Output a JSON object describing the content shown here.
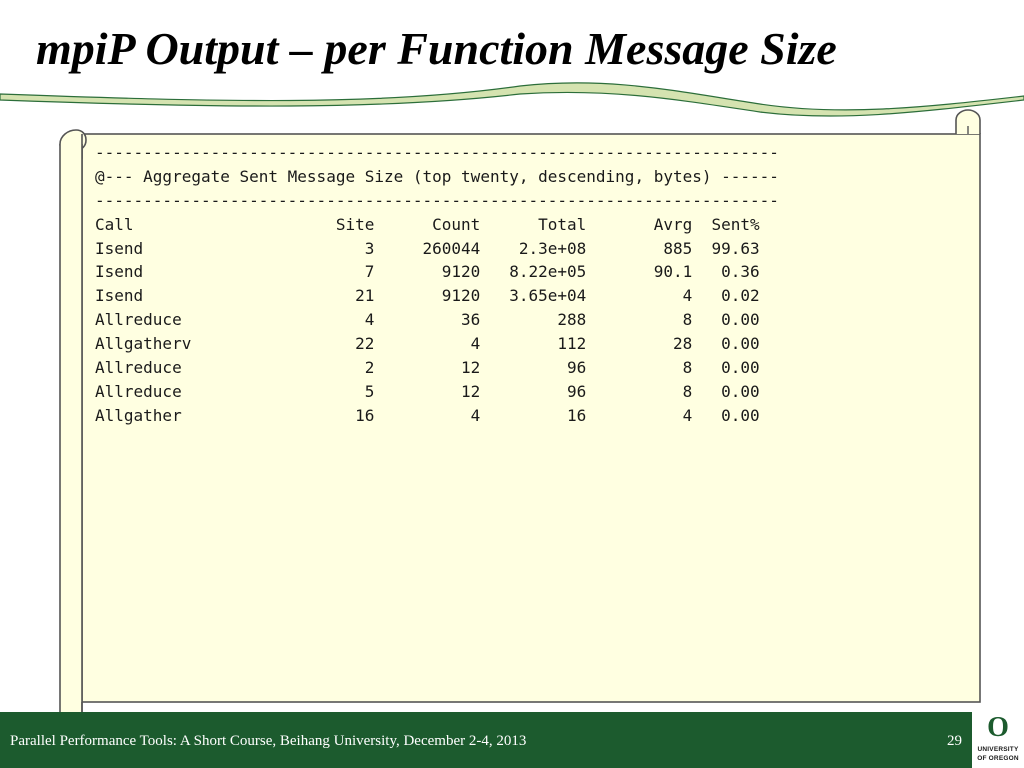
{
  "slide": {
    "title": "mpiP Output – per Function Message Size"
  },
  "listing": {
    "lines": [
      "-----------------------------------------------------------------------",
      "@--- Aggregate Sent Message Size (top twenty, descending, bytes) ------",
      "-----------------------------------------------------------------------"
    ],
    "columns": [
      "Call",
      "Site",
      "Count",
      "Total",
      "Avrg",
      "Sent%"
    ],
    "rows": [
      [
        "Isend",
        "3",
        "260044",
        "2.3e+08",
        "885",
        "99.63"
      ],
      [
        "Isend",
        "7",
        "9120",
        "8.22e+05",
        "90.1",
        "0.36"
      ],
      [
        "Isend",
        "21",
        "9120",
        "3.65e+04",
        "4",
        "0.02"
      ],
      [
        "Allreduce",
        "4",
        "36",
        "288",
        "8",
        "0.00"
      ],
      [
        "Allgatherv",
        "22",
        "4",
        "112",
        "28",
        "0.00"
      ],
      [
        "Allreduce",
        "2",
        "12",
        "96",
        "8",
        "0.00"
      ],
      [
        "Allreduce",
        "5",
        "12",
        "96",
        "8",
        "0.00"
      ],
      [
        "Allgather",
        "16",
        "4",
        "16",
        "4",
        "0.00"
      ]
    ]
  },
  "footer": {
    "text": "Parallel Performance Tools: A Short Course, Beihang University, December 2-4, 2013",
    "page_number": "29"
  },
  "logo": {
    "letter": "O",
    "line1": "UNIVERSITY",
    "line2": "OF OREGON"
  },
  "colors": {
    "footer_bg": "#1c5b2e",
    "scroll_fill": "#ffffe1",
    "wave_fill": "#d5e3b0",
    "wave_stroke": "#2c6e3a"
  }
}
